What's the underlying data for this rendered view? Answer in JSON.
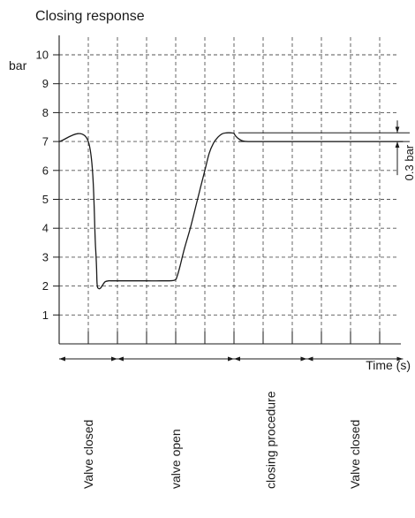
{
  "chart_data": {
    "type": "line",
    "title": "Closing response",
    "xlabel": "Time (s)",
    "ylabel": "bar",
    "ylim": [
      0,
      10
    ],
    "y_ticks": [
      "1",
      "2",
      "3",
      "4",
      "5",
      "6",
      "7",
      "8",
      "9",
      "10"
    ],
    "grid": true,
    "grid_style": "dashed",
    "series": [
      {
        "x": [
          0,
          1.0,
          1.25,
          1.3,
          1.35,
          1.42,
          1.5,
          1.58,
          1.7,
          1.8,
          2.0,
          2.5,
          3.0,
          3.5,
          3.95,
          4.05,
          4.15,
          4.3,
          4.5,
          4.7,
          4.85,
          5.0,
          5.15,
          5.3,
          5.45,
          5.6,
          5.75,
          5.9,
          6.0,
          6.05,
          6.15,
          6.3,
          6.5,
          7.0,
          7.5,
          8.0,
          8.5,
          9.0,
          11.8
        ],
        "y": [
          7.0,
          7.0,
          3.3,
          2.1,
          1.92,
          1.93,
          2.05,
          2.15,
          2.18,
          2.18,
          2.18,
          2.18,
          2.18,
          2.18,
          2.2,
          2.35,
          2.7,
          3.3,
          4.0,
          4.8,
          5.4,
          6.0,
          6.6,
          6.95,
          7.15,
          7.27,
          7.3,
          7.3,
          7.28,
          7.2,
          7.1,
          7.02,
          7.0,
          7.0,
          7.0,
          7.0,
          7.0,
          7.0,
          7.0
        ]
      }
    ],
    "annotations": {
      "overshoot": {
        "text": "0.3 bar",
        "y_from": 7.0,
        "y_to": 7.3,
        "x_start": 6.15
      }
    },
    "phases": [
      {
        "label": "Valve closed",
        "x_start": 0,
        "x_end": 2
      },
      {
        "label": "valve open",
        "x_start": 2,
        "x_end": 6
      },
      {
        "label": "closing procedure",
        "x_start": 6,
        "x_end": 8.5
      },
      {
        "label": "Valve closed",
        "x_start": 8.5,
        "x_end": 11.8
      }
    ]
  }
}
